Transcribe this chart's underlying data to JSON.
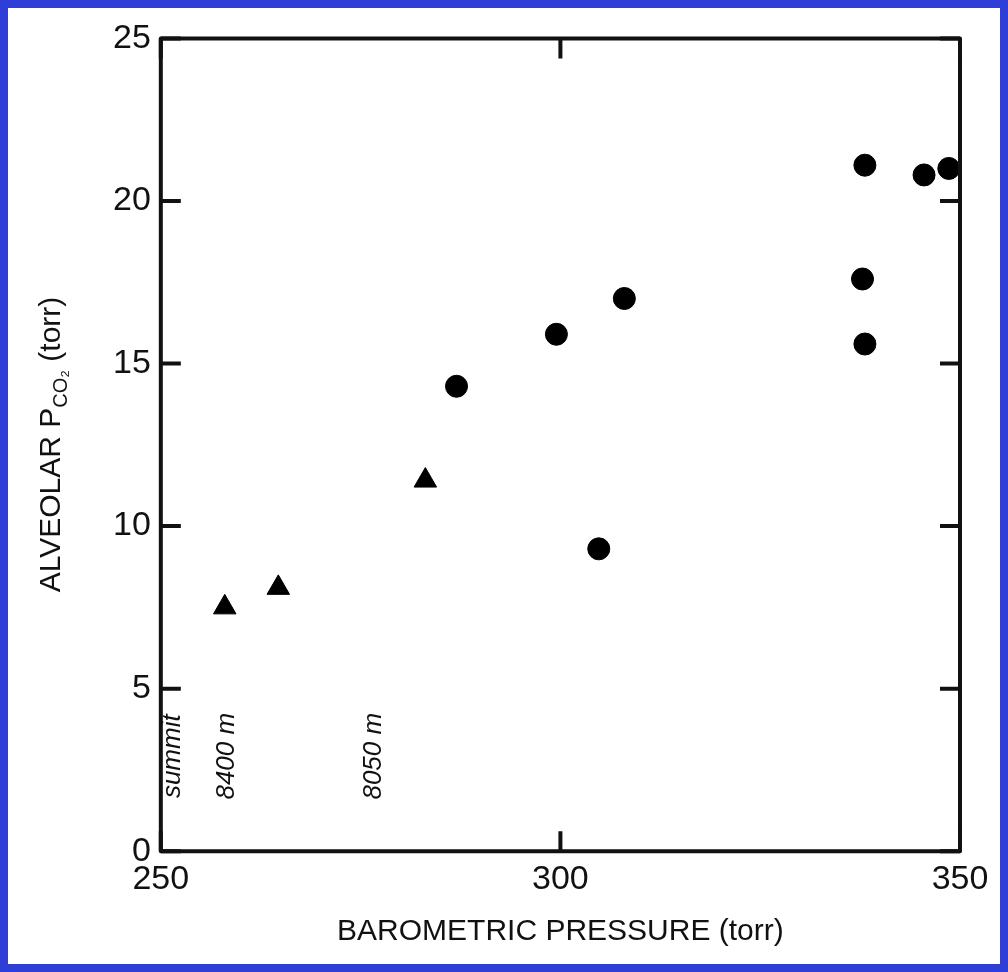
{
  "chart_data": {
    "type": "scatter",
    "xlabel": "BAROMETRIC PRESSURE (torr)",
    "ylabel": "ALVEOLAR P$_{CO₂}$ (torr)",
    "xlim": [
      250,
      350
    ],
    "xticks": [
      250,
      300,
      350
    ],
    "ylim": [
      0,
      25
    ],
    "yticks": [
      0,
      5,
      10,
      15,
      20,
      25
    ],
    "grid": false,
    "legend": false,
    "series": [
      {
        "color": "#000000",
        "marker": "triangle",
        "x": [
          258,
          264.7,
          283.1
        ],
        "values": [
          7.5,
          8.1,
          11.4
        ]
      },
      {
        "color": "#000000",
        "marker": "circle",
        "x": [
          287,
          299.5,
          308,
          304.8,
          338.1,
          337.8,
          338.1,
          345.5,
          348.6
        ],
        "values": [
          14.3,
          15.9,
          17.0,
          9.3,
          21.1,
          17.6,
          15.6,
          20.8,
          21.0
        ]
      }
    ],
    "annotations": [
      "summit",
      "8400 m",
      "8050 m"
    ]
  }
}
